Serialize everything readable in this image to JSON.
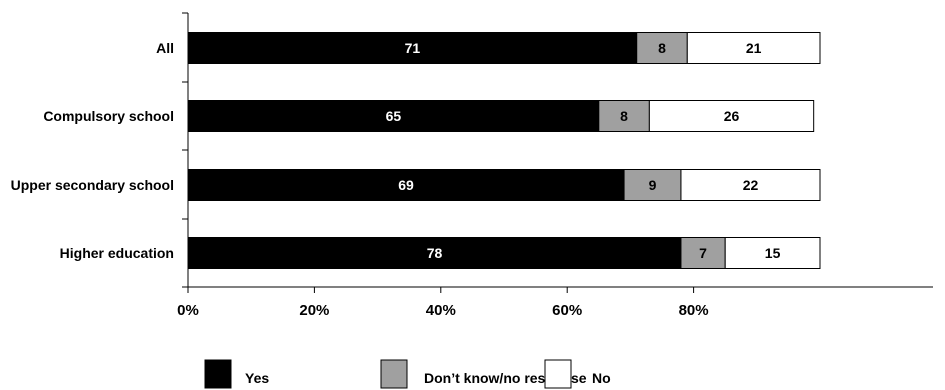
{
  "chart_data": {
    "type": "bar",
    "orientation": "horizontal",
    "stacked": true,
    "categories": [
      "All",
      "Compulsory school",
      "Upper secondary school",
      "Higher education"
    ],
    "series": [
      {
        "name": "Yes",
        "values": [
          71,
          65,
          69,
          78
        ],
        "color": "#000000",
        "label_color": "#ffffff"
      },
      {
        "name": "Don’t know/no response",
        "values": [
          8,
          8,
          9,
          7
        ],
        "color": "#a0a0a0",
        "label_color": "#000000"
      },
      {
        "name": "No",
        "values": [
          21,
          26,
          22,
          15
        ],
        "color": "#ffffff",
        "label_color": "#000000"
      }
    ],
    "xlim": [
      0,
      100
    ],
    "x_ticks": [
      0,
      20,
      40,
      60,
      80
    ],
    "x_tick_labels": [
      "0%",
      "20%",
      "40%",
      "60%",
      "80%"
    ],
    "grid": false,
    "legend_position": "bottom"
  }
}
